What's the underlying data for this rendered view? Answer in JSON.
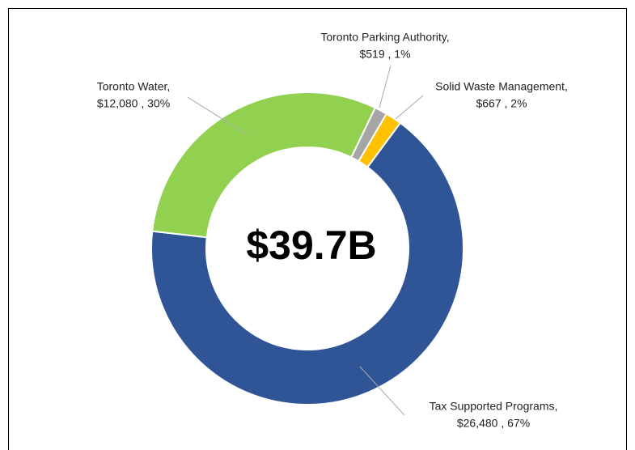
{
  "chart_data": {
    "type": "pie",
    "center_label": "$39.7B",
    "categories": [
      "Tax Supported Programs,",
      "Toronto Water,",
      "Toronto Parking Authority,",
      "Solid Waste Management,"
    ],
    "values": [
      26480,
      12080,
      519,
      667
    ],
    "value_labels": [
      "$26,480 , 67%",
      "$12,080 , 30%",
      "$519 , 1%",
      "$667 , 2%"
    ],
    "colors": [
      "#2f5597",
      "#92d050",
      "#a5a5a5",
      "#ffc000"
    ]
  }
}
